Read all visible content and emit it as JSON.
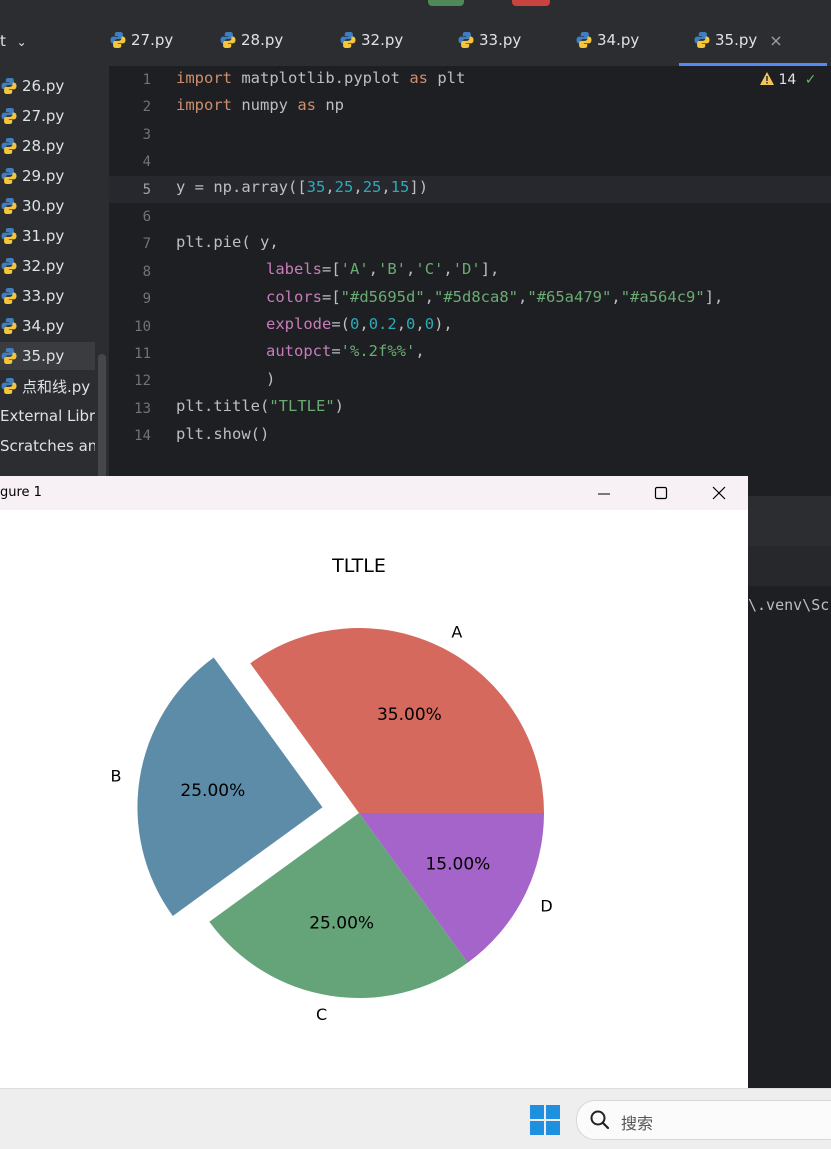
{
  "ide": {
    "project_label": "t",
    "project_chevron": "chevron-down-icon",
    "files": [
      {
        "name": "26.py",
        "icon": "python-icon"
      },
      {
        "name": "27.py",
        "icon": "python-icon"
      },
      {
        "name": "28.py",
        "icon": "python-icon"
      },
      {
        "name": "29.py",
        "icon": "python-icon"
      },
      {
        "name": "30.py",
        "icon": "python-icon"
      },
      {
        "name": "31.py",
        "icon": "python-icon"
      },
      {
        "name": "32.py",
        "icon": "python-icon"
      },
      {
        "name": "33.py",
        "icon": "python-icon"
      },
      {
        "name": "34.py",
        "icon": "python-icon"
      },
      {
        "name": "35.py",
        "icon": "python-icon",
        "selected": true
      },
      {
        "name": "点和线.py",
        "icon": "python-icon"
      }
    ],
    "external_libraries": "External Librari",
    "scratches": "Scratches and C",
    "tabs": [
      "27.py",
      "28.py",
      "32.py",
      "33.py",
      "34.py",
      "35.py"
    ],
    "active_tab": "35.py",
    "warnings_count": "14",
    "line_numbers": [
      "1",
      "2",
      "3",
      "4",
      "5",
      "6",
      "7",
      "8",
      "9",
      "10",
      "11",
      "12",
      "13",
      "14"
    ],
    "code": {
      "l1": {
        "kw1": "import",
        "mod": " matplotlib.pyplot ",
        "kw2": "as",
        "alias": " plt"
      },
      "l2": {
        "kw1": "import",
        "mod": " numpy ",
        "kw2": "as",
        "alias": " np"
      },
      "l5": {
        "a": "y = np.array([",
        "n1": "35",
        "c1": ",",
        "n2": "25",
        "c2": ",",
        "n3": "25",
        "c3": ",",
        "n4": "15",
        "z": "])"
      },
      "l7": "plt.pie( y,",
      "l8": {
        "p": "labels",
        "eq": "=[",
        "s1": "'A'",
        "c1": ",",
        "s2": "'B'",
        "c2": ",",
        "s3": "'C'",
        "c3": ",",
        "s4": "'D'",
        "z": "],"
      },
      "l9": {
        "p": "colors",
        "eq": "=[",
        "s1": "\"#d5695d\"",
        "c1": ",",
        "s2": "\"#5d8ca8\"",
        "c2": ",",
        "s3": "\"#65a479\"",
        "c3": ",",
        "s4": "\"#a564c9\"",
        "z": "],"
      },
      "l10": {
        "p": "explode",
        "eq": "=(",
        "n1": "0",
        "c1": ",",
        "n2": "0.2",
        "c2": ",",
        "n3": "0",
        "c3": ",",
        "n4": "0",
        "z": "),"
      },
      "l11": {
        "p": "autopct",
        "eq": "=",
        "s": "'%.2f%%'",
        "z": ","
      },
      "l12": ")",
      "l13": {
        "a": "plt.title(",
        "s": "\"TLTLE\"",
        "z": ")"
      },
      "l14": "plt.show()"
    }
  },
  "console": {
    "path_text": "\\.venv\\Sc"
  },
  "figure_window": {
    "title": "gure 1",
    "controls": {
      "minimize": "minimize-icon",
      "maximize": "maximize-icon",
      "close": "close-icon"
    }
  },
  "chart_data": {
    "type": "pie",
    "title": "TLTLE",
    "labels": [
      "A",
      "B",
      "C",
      "D"
    ],
    "values": [
      35,
      25,
      25,
      15
    ],
    "pct_labels": [
      "35.00%",
      "25.00%",
      "25.00%",
      "15.00%"
    ],
    "colors": [
      "#d5695d",
      "#5d8ca8",
      "#65a479",
      "#a564c9"
    ],
    "explode": [
      0,
      0.2,
      0,
      0
    ],
    "start_angle_deg": 0,
    "direction": "counterclockwise"
  },
  "taskbar": {
    "search_placeholder": "搜索",
    "start_icon": "windows-logo-icon",
    "search_icon": "search-icon"
  }
}
